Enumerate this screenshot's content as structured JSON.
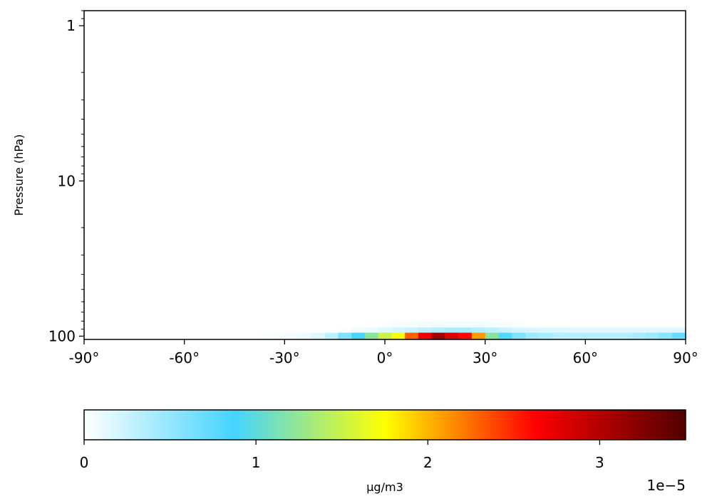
{
  "chart_data": {
    "type": "heatmap",
    "title": "",
    "xlabel": "",
    "ylabel": "Pressure (hPa)",
    "x_range": [
      -90,
      90
    ],
    "y_range": [
      0.8,
      105
    ],
    "y_scale": "log",
    "y_inverted": true,
    "x_ticks": [
      -90,
      -60,
      -30,
      0,
      30,
      60,
      90
    ],
    "x_tick_labels": [
      "-90°",
      "-60°",
      "-30°",
      "0°",
      "30°",
      "60°",
      "90°"
    ],
    "y_ticks": [
      1,
      10,
      100
    ],
    "y_tick_labels": [
      "1",
      "10",
      "100"
    ],
    "grid": false,
    "cells": {
      "lat_start": -42,
      "lat_step": 4,
      "rows": [
        {
          "p_top": 80,
          "p_bottom": 88,
          "values": [
            0,
            0,
            0,
            0,
            0,
            0,
            0,
            0,
            0,
            0,
            0.02,
            0.04,
            0.05,
            0.06,
            0.06,
            0.06,
            0.06,
            0.06,
            0.05,
            0.04,
            0.02,
            0,
            0,
            0,
            0,
            0,
            0,
            0,
            0,
            0,
            0,
            0,
            0,
            0
          ]
        },
        {
          "p_top": 88,
          "p_bottom": 95,
          "values": [
            0,
            0,
            0,
            0,
            0,
            0,
            0,
            0.03,
            0.06,
            0.1,
            0.15,
            0.2,
            0.25,
            0.3,
            0.35,
            0.4,
            0.4,
            0.35,
            0.3,
            0.25,
            0.2,
            0.18,
            0.17,
            0.16,
            0.15,
            0.15,
            0.15,
            0.15,
            0.15,
            0.15,
            0.15,
            0.15,
            0.15,
            0.15
          ]
        },
        {
          "p_top": 95,
          "p_bottom": 105,
          "values": [
            0,
            0.02,
            0.03,
            0.05,
            0.08,
            0.15,
            0.3,
            0.6,
            0.9,
            1.2,
            1.5,
            1.7,
            2.3,
            2.7,
            3.1,
            2.8,
            2.6,
            2.1,
            1.2,
            0.8,
            0.6,
            0.45,
            0.4,
            0.35,
            0.35,
            0.35,
            0.35,
            0.35,
            0.35,
            0.4,
            0.45,
            0.55,
            0.7,
            0.85
          ]
        }
      ]
    },
    "colorbar": {
      "label": "µg/m3",
      "min": 0,
      "max": 3.5,
      "ticks": [
        0,
        1,
        2,
        3
      ],
      "tick_labels": [
        "0",
        "1",
        "2",
        "3"
      ],
      "offset_text": "1e−5",
      "colormap_stops": [
        "#ffffff",
        "#44d4ff",
        "#ffff00",
        "#ff0000",
        "#500000"
      ],
      "colormap_positions": [
        0,
        0.25,
        0.5,
        0.75,
        1
      ]
    }
  }
}
